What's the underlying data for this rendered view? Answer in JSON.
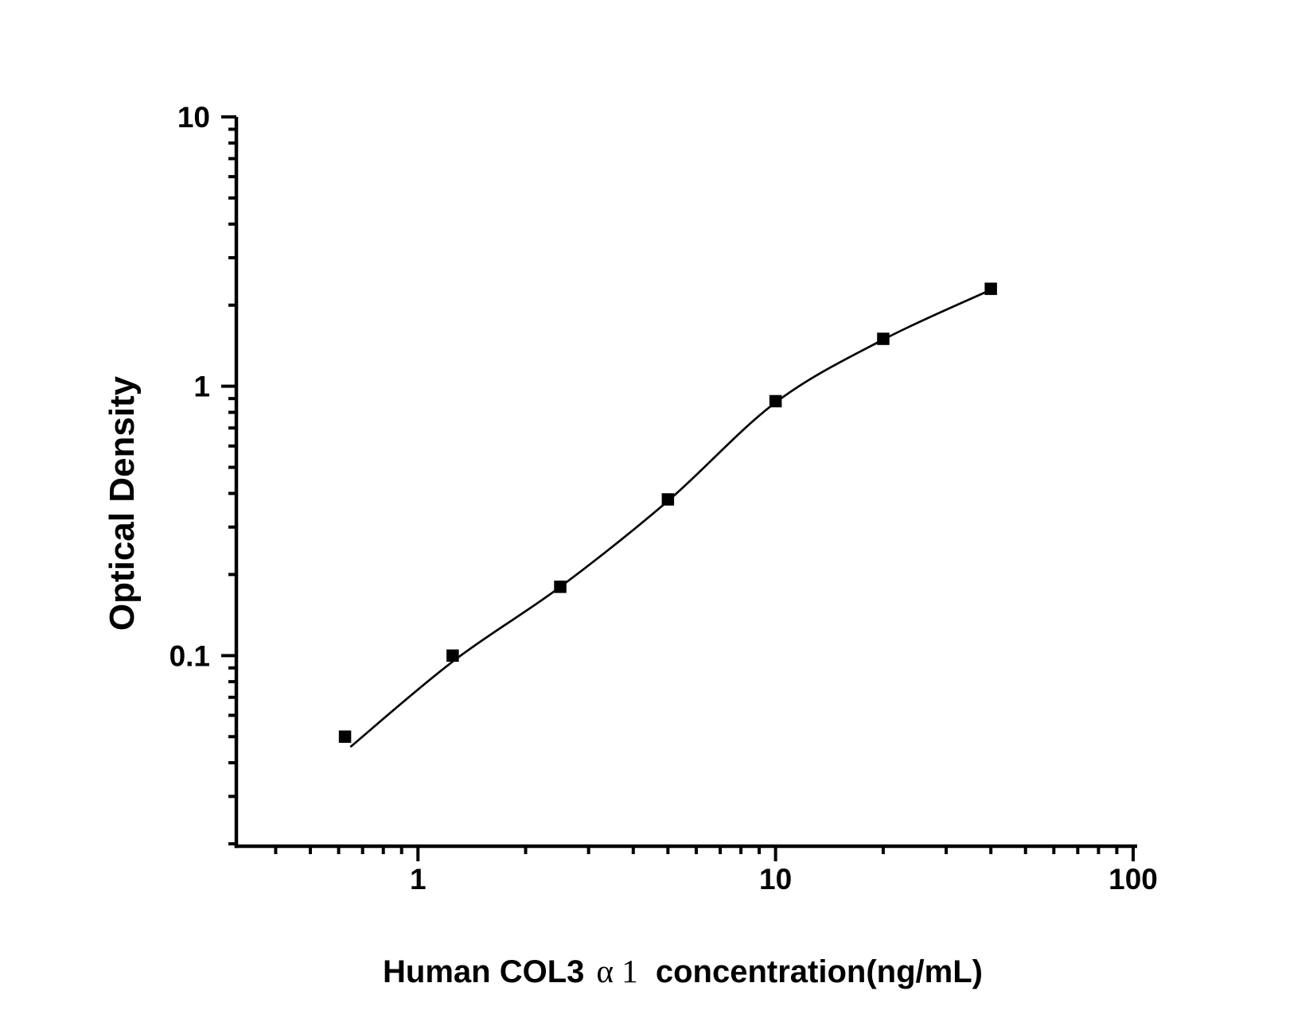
{
  "figure": {
    "background_color": "#ffffff",
    "foreground_color": "#000000"
  },
  "chart_data": {
    "type": "scatter",
    "title": "",
    "xlabel": "Human COL3α 1 concentration(ng/mL)",
    "xlabel_parts": {
      "prefix": "Human COL3",
      "alpha_serif": "α 1",
      "suffix": "concentration(ng/mL)"
    },
    "ylabel": "Optical Density",
    "x_axis": {
      "scale": "log",
      "min": 0.3105,
      "max": 100,
      "ticks": [
        1,
        10,
        100
      ],
      "tick_labels": [
        "1",
        "10",
        "100"
      ]
    },
    "y_axis": {
      "scale": "log",
      "min": 0.0196,
      "max": 10,
      "ticks": [
        0.1,
        1,
        10
      ],
      "tick_labels": [
        "0.1",
        "1",
        "10"
      ]
    },
    "series": [
      {
        "marker": "filled-square",
        "color": "#000000",
        "x": [
          0.625,
          1.25,
          2.5,
          5,
          10,
          20,
          40
        ],
        "y": [
          0.05,
          0.1,
          0.18,
          0.38,
          0.88,
          1.5,
          2.3
        ]
      }
    ],
    "fit_curve": {
      "color": "#000000",
      "x": [
        0.65,
        1.25,
        2.5,
        5,
        10,
        20,
        40
      ],
      "y": [
        0.046,
        0.095,
        0.18,
        0.375,
        0.87,
        1.49,
        2.28
      ]
    },
    "grid": false,
    "legend": false
  }
}
